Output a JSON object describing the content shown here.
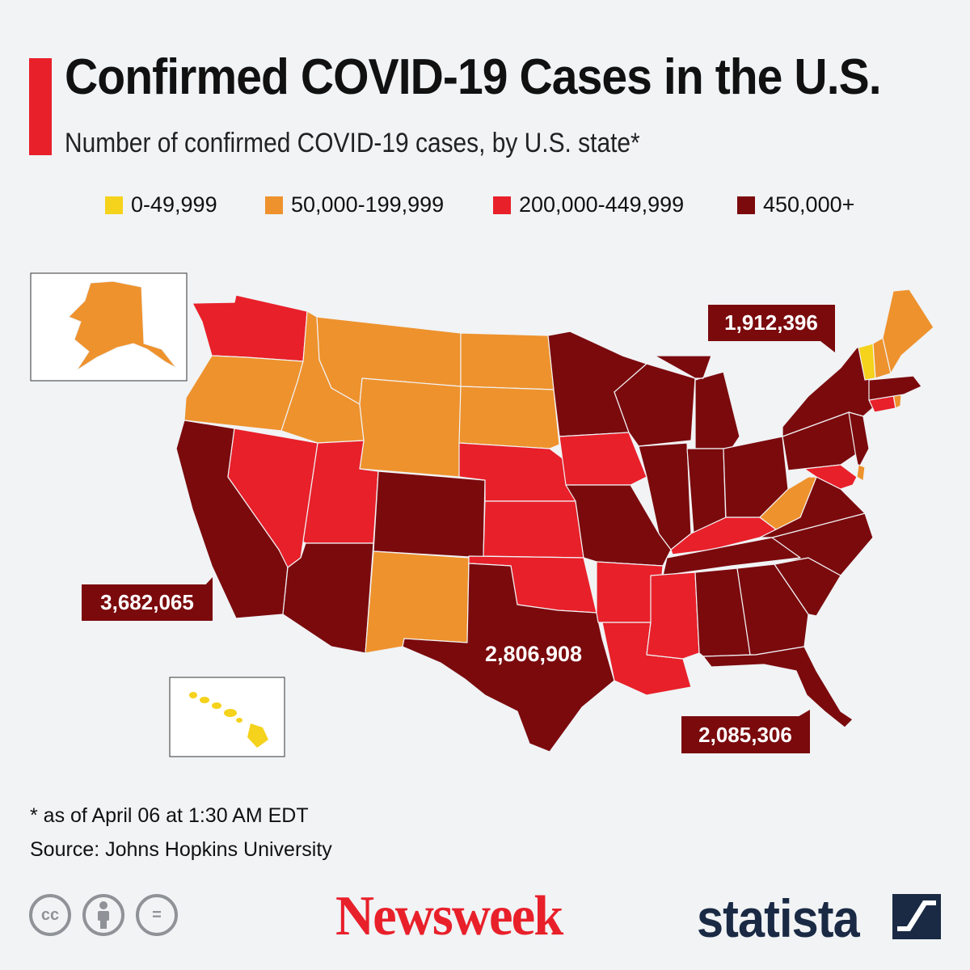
{
  "header": {
    "title": "Confirmed COVID-19 Cases in the U.S.",
    "subtitle": "Number of confirmed COVID-19 cases, by U.S. state*"
  },
  "colors": {
    "accent": "#e8202a",
    "bin_yellow": "#f5d21b",
    "bin_orange": "#ee922d",
    "bin_red": "#e8202a",
    "bin_darkred": "#7b0a0d",
    "background": "#f1f3f5"
  },
  "legend": [
    {
      "label": "0-49,999",
      "color": "#f5d21b"
    },
    {
      "label": "50,000-199,999",
      "color": "#ee922d"
    },
    {
      "label": "200,000-449,999",
      "color": "#e8202a"
    },
    {
      "label": "450,000+",
      "color": "#7b0a0d"
    }
  ],
  "callouts": {
    "california": "3,682,065",
    "texas": "2,806,908",
    "florida": "2,085,306",
    "new_york": "1,912,396"
  },
  "state_bins": {
    "WA": "200,000-449,999",
    "OR": "50,000-199,999",
    "CA": "450,000+",
    "NV": "200,000-449,999",
    "ID": "50,000-199,999",
    "MT": "50,000-199,999",
    "WY": "50,000-199,999",
    "UT": "200,000-449,999",
    "AZ": "450,000+",
    "CO": "450,000+",
    "NM": "50,000-199,999",
    "ND": "50,000-199,999",
    "SD": "50,000-199,999",
    "NE": "200,000-449,999",
    "KS": "200,000-449,999",
    "OK": "200,000-449,999",
    "TX": "450,000+",
    "MN": "450,000+",
    "IA": "200,000-449,999",
    "MO": "450,000+",
    "AR": "200,000-449,999",
    "LA": "200,000-449,999",
    "WI": "450,000+",
    "IL": "450,000+",
    "MI": "450,000+",
    "IN": "450,000+",
    "OH": "450,000+",
    "KY": "200,000-449,999",
    "TN": "450,000+",
    "MS": "200,000-449,999",
    "AL": "450,000+",
    "GA": "450,000+",
    "FL": "450,000+",
    "SC": "450,000+",
    "NC": "450,000+",
    "VA": "450,000+",
    "WV": "50,000-199,999",
    "PA": "450,000+",
    "NY": "450,000+",
    "NJ": "450,000+",
    "MD": "200,000-449,999",
    "DE": "50,000-199,999",
    "CT": "200,000-449,999",
    "RI": "50,000-199,999",
    "MA": "450,000+",
    "VT": "0-49,999",
    "NH": "50,000-199,999",
    "ME": "50,000-199,999",
    "AK": "50,000-199,999",
    "HI": "0-49,999"
  },
  "footer": {
    "footnote": "* as of April 06 at 1:30 AM EDT",
    "source": "Source: Johns Hopkins University",
    "license_icons": [
      "cc-icon",
      "attribution-icon",
      "no-derivatives-icon"
    ],
    "license_glyphs": {
      "cc": "cc",
      "by": "",
      "nd": "="
    },
    "logos": {
      "newsweek": "Newsweek",
      "statista": "statista"
    }
  }
}
